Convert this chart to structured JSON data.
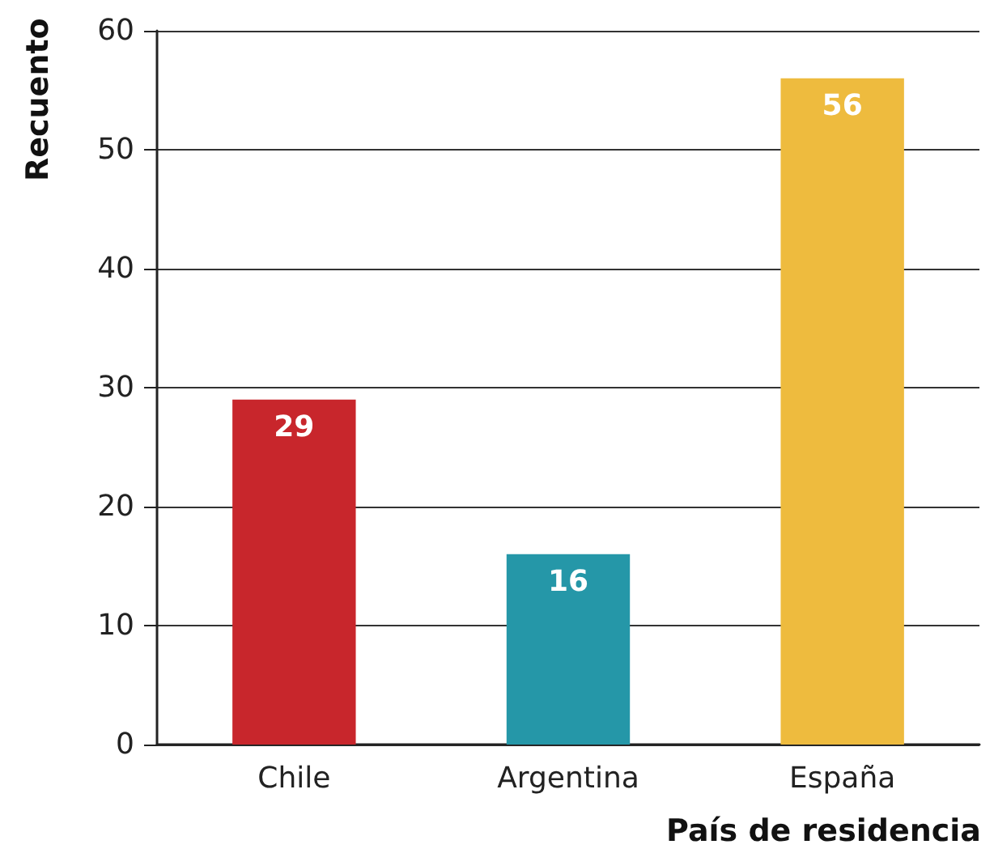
{
  "chart_data": {
    "type": "bar",
    "xlabel": "País de residencia",
    "ylabel": "Recuento",
    "categories": [
      "Chile",
      "Argentina",
      "España"
    ],
    "values": [
      29,
      16,
      56
    ],
    "colors": [
      "#c8262c",
      "#2597a8",
      "#eebb3e"
    ],
    "ylim": [
      0,
      60
    ],
    "yticks": [
      0,
      10,
      20,
      30,
      40,
      50,
      60
    ],
    "grid": "y",
    "data_labels": true
  }
}
